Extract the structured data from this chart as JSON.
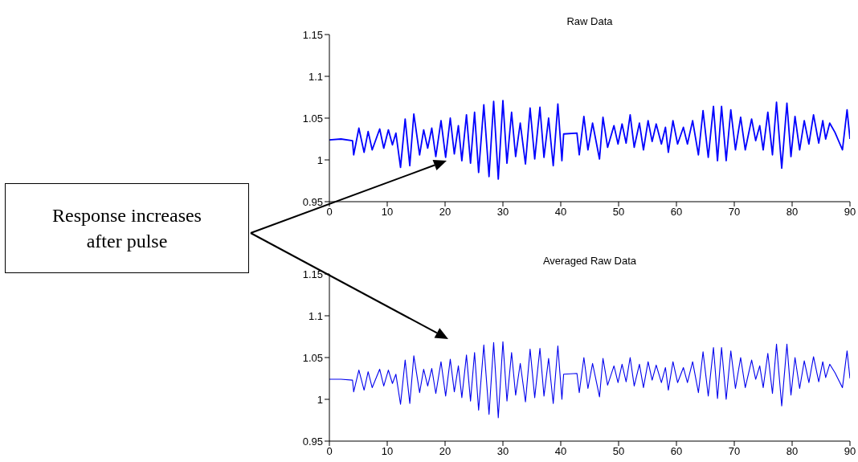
{
  "chart_data": [
    {
      "type": "line",
      "title": "Raw Data",
      "color": "#0000ff",
      "x": [
        0,
        2,
        4,
        4.2,
        5.1,
        6.0,
        6.7,
        7.4,
        8.7,
        9.4,
        10.2,
        10.9,
        11.5,
        12.3,
        13.1,
        13.9,
        14.6,
        15.6,
        16.3,
        17.0,
        17.7,
        18.4,
        19.3,
        20.1,
        20.9,
        21.6,
        22.3,
        22.9,
        23.7,
        24.4,
        25.1,
        25.8,
        26.7,
        27.6,
        28.4,
        29.2,
        30.0,
        30.7,
        31.5,
        32.2,
        33.0,
        33.9,
        34.7,
        35.5,
        36.4,
        37.1,
        37.9,
        38.7,
        39.5,
        40.2,
        40.5,
        42.8,
        43.2,
        44.0,
        44.7,
        45.5,
        46.7,
        47.3,
        48.1,
        49.2,
        49.9,
        50.6,
        51.3,
        52.0,
        52.7,
        53.6,
        54.3,
        55.1,
        55.8,
        56.5,
        57.4,
        58.1,
        58.6,
        59.4,
        60.2,
        61.2,
        61.9,
        62.8,
        63.8,
        64.6,
        65.5,
        66.4,
        67.1,
        67.8,
        68.6,
        69.4,
        70.2,
        71.1,
        71.9,
        73.0,
        73.7,
        74.4,
        75.0,
        75.8,
        76.6,
        77.3,
        78.2,
        79.1,
        79.8,
        80.5,
        81.3,
        82.1,
        82.9,
        83.7,
        84.6,
        85.3,
        85.8,
        86.5,
        87.4,
        88.7,
        89.5,
        90
      ],
      "values": [
        1.024,
        1.025,
        1.023,
        1.006,
        1.038,
        1.009,
        1.034,
        1.012,
        1.037,
        1.014,
        1.036,
        1.018,
        1.032,
        0.991,
        1.049,
        0.993,
        1.055,
        1.006,
        1.036,
        1.014,
        1.038,
        1.004,
        1.047,
        1.003,
        1.05,
        1.007,
        1.041,
        0.999,
        1.054,
        0.996,
        1.057,
        0.985,
        1.066,
        0.98,
        1.07,
        0.977,
        1.071,
        0.996,
        1.057,
        1.004,
        1.044,
        0.995,
        1.062,
        1.001,
        1.063,
        1.003,
        1.05,
        0.993,
        1.067,
        0.999,
        1.031,
        1.032,
        1.006,
        1.052,
        1.012,
        1.044,
        1.001,
        1.051,
        1.015,
        1.041,
        1.019,
        1.043,
        1.02,
        1.054,
        1.015,
        1.044,
        1.012,
        1.047,
        1.022,
        1.043,
        1.019,
        1.039,
        1.009,
        1.047,
        1.019,
        1.039,
        1.019,
        1.047,
        1.006,
        1.059,
        1.003,
        1.064,
        0.999,
        1.064,
        0.999,
        1.06,
        1.012,
        1.051,
        1.012,
        1.049,
        1.023,
        1.041,
        1.012,
        1.057,
        1.006,
        1.069,
        0.99,
        1.068,
        1.004,
        1.052,
        1.012,
        1.047,
        1.019,
        1.054,
        1.02,
        1.047,
        1.025,
        1.044,
        1.033,
        1.012,
        1.06,
        1.025
      ],
      "xlim": [
        0,
        90
      ],
      "xticks": [
        0,
        10,
        20,
        30,
        40,
        50,
        60,
        70,
        80,
        90
      ],
      "ylim": [
        0.95,
        1.15
      ],
      "yticks": [
        0.95,
        1,
        1.05,
        1.1,
        1.15
      ],
      "grid": false,
      "legend": false,
      "marker": "none",
      "line_style": "solid",
      "annotations": [
        "Response increases after pulse"
      ]
    },
    {
      "type": "line",
      "title": "Averaged Raw Data",
      "color": "#0000ee",
      "x": [
        0,
        2,
        4,
        4.2,
        5.1,
        6.0,
        6.7,
        7.4,
        8.7,
        9.4,
        10.2,
        10.9,
        11.5,
        12.3,
        13.1,
        13.9,
        14.6,
        15.6,
        16.3,
        17.0,
        17.7,
        18.4,
        19.3,
        20.1,
        20.9,
        21.6,
        22.3,
        22.9,
        23.7,
        24.4,
        25.1,
        25.8,
        26.7,
        27.6,
        28.4,
        29.2,
        30.0,
        30.7,
        31.5,
        32.2,
        33.0,
        33.9,
        34.7,
        35.5,
        36.4,
        37.1,
        37.9,
        38.7,
        39.5,
        40.2,
        40.5,
        42.8,
        43.2,
        44.0,
        44.7,
        45.5,
        46.7,
        47.3,
        48.1,
        49.2,
        49.9,
        50.6,
        51.3,
        52.0,
        52.7,
        53.6,
        54.3,
        55.1,
        55.8,
        56.5,
        57.4,
        58.1,
        58.6,
        59.4,
        60.2,
        61.2,
        61.9,
        62.8,
        63.8,
        64.6,
        65.5,
        66.4,
        67.1,
        67.8,
        68.6,
        69.4,
        70.2,
        71.1,
        71.9,
        73.0,
        73.7,
        74.4,
        75.0,
        75.8,
        76.6,
        77.3,
        78.2,
        79.1,
        79.8,
        80.5,
        81.3,
        82.1,
        82.9,
        83.7,
        84.6,
        85.3,
        85.8,
        86.5,
        87.4,
        88.7,
        89.5,
        90
      ],
      "values": [
        1.024,
        1.024,
        1.023,
        1.009,
        1.035,
        1.011,
        1.033,
        1.014,
        1.036,
        1.016,
        1.035,
        1.019,
        1.03,
        0.994,
        1.047,
        0.995,
        1.052,
        1.008,
        1.036,
        1.016,
        1.037,
        1.007,
        1.045,
        1.004,
        1.048,
        1.009,
        1.04,
        1.002,
        1.053,
        0.998,
        1.056,
        0.987,
        1.065,
        0.982,
        1.068,
        0.978,
        1.069,
        0.998,
        1.056,
        1.005,
        1.043,
        0.997,
        1.06,
        1.002,
        1.061,
        1.004,
        1.049,
        0.995,
        1.064,
        1.0,
        1.03,
        1.031,
        1.008,
        1.05,
        1.013,
        1.043,
        1.003,
        1.049,
        1.017,
        1.04,
        1.02,
        1.042,
        1.021,
        1.05,
        1.016,
        1.042,
        1.014,
        1.045,
        1.023,
        1.041,
        1.02,
        1.038,
        1.011,
        1.045,
        1.02,
        1.038,
        1.02,
        1.045,
        1.008,
        1.057,
        1.004,
        1.062,
        1.001,
        1.062,
        1.0,
        1.058,
        1.013,
        1.05,
        1.014,
        1.047,
        1.024,
        1.04,
        1.014,
        1.055,
        1.007,
        1.066,
        0.992,
        1.066,
        1.005,
        1.05,
        1.013,
        1.046,
        1.02,
        1.051,
        1.021,
        1.045,
        1.026,
        1.042,
        1.032,
        1.014,
        1.058,
        1.025
      ],
      "xlim": [
        0,
        90
      ],
      "xticks": [
        0,
        10,
        20,
        30,
        40,
        50,
        60,
        70,
        80,
        90
      ],
      "ylim": [
        0.95,
        1.15
      ],
      "yticks": [
        0.95,
        1,
        1.05,
        1.1,
        1.15
      ],
      "grid": false,
      "legend": false,
      "marker": "none",
      "line_style": "solid"
    }
  ]
}
